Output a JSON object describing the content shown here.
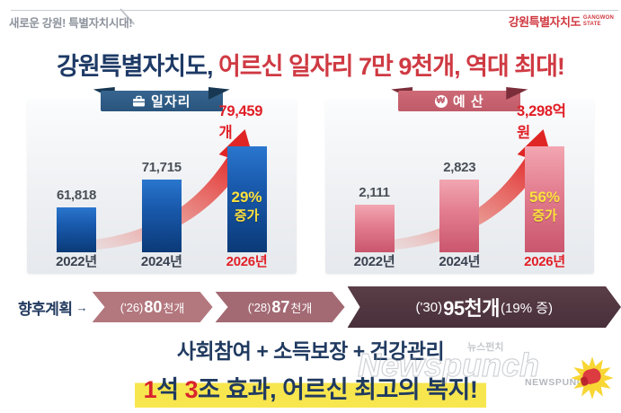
{
  "page": {
    "tagline": "새로운 강원! 특별자치시대!",
    "logo": {
      "korean": "강원특별자치도",
      "english_line1": "GANGWON",
      "english_line2": "STATE"
    },
    "title": {
      "navy": "강원특별자치도,",
      "red": " 어르신 일자리 7만 9천개, 역대 최대!"
    }
  },
  "chart_data": [
    {
      "type": "bar",
      "title": "일자리",
      "icon": "briefcase-icon",
      "categories": [
        "2022년",
        "2024년",
        "2026년"
      ],
      "values": [
        61818,
        71715,
        79459
      ],
      "value_labels": [
        "61,818",
        "71,715",
        "79,459개"
      ],
      "unit": "개",
      "growth_pct": "29%",
      "growth_word": "증가",
      "annotation": "29% 증가 (2026년 강조, 상승 화살표)",
      "bar_height_ratios": [
        0.42,
        0.69,
        1.0
      ],
      "ylim": "축 생략(바 높이 과장 스케일)",
      "accent_color": "#0a3a78"
    },
    {
      "type": "bar",
      "title": "예 산",
      "icon": "won-coin-icon",
      "icon_glyph": "₩",
      "categories": [
        "2022년",
        "2024년",
        "2026년"
      ],
      "values": [
        2111,
        2823,
        3298
      ],
      "value_labels": [
        "2,111",
        "2,823",
        "3,298억 원"
      ],
      "unit": "억 원",
      "growth_pct": "56%",
      "growth_word": "증가",
      "annotation": "56% 증가 (2026년 강조, 상승 화살표)",
      "bar_height_ratios": [
        0.45,
        0.69,
        1.0
      ],
      "ylim": "축 생략(바 높이 과장 스케일)",
      "accent_color": "#ca566d"
    }
  ],
  "future_plan": {
    "label": "향후계획",
    "arrow": "→",
    "segments": [
      {
        "prefix": "('26) ",
        "number": "80",
        "suffix": "천개",
        "note": ""
      },
      {
        "prefix": "('28) ",
        "number": "87",
        "suffix": "천개",
        "note": ""
      },
      {
        "prefix": "('30) ",
        "number": "95천개",
        "suffix": "",
        "note": "(19% 증)"
      }
    ]
  },
  "footer": {
    "line1": "사회참여 + 소득보장 + 건강관리",
    "line2": [
      {
        "text": "1",
        "color": "red"
      },
      {
        "text": "석 ",
        "color": "navy"
      },
      {
        "text": "3",
        "color": "red"
      },
      {
        "text": "조 효과, 어르신 최고의 복지!",
        "color": "navy"
      }
    ]
  },
  "watermark": {
    "korean": "뉴스펀치",
    "script": "Newspunch",
    "caps": "NEWSPUNCH"
  },
  "colors": {
    "title_navy": "#1e3a66",
    "title_red": "#cf3a43",
    "bar_blue": "#0a3a78",
    "bar_pink": "#ca566d",
    "ribbon_navy": "#28547d",
    "ribbon_rose": "#c05b69",
    "growth_yellow": "#ffe23e",
    "highlight_yellow": "#f8e64f",
    "chevron_1": "#b3777e",
    "chevron_2": "#a36a74",
    "chevron_3": "#4f353f",
    "value_red": "#e11e26"
  }
}
